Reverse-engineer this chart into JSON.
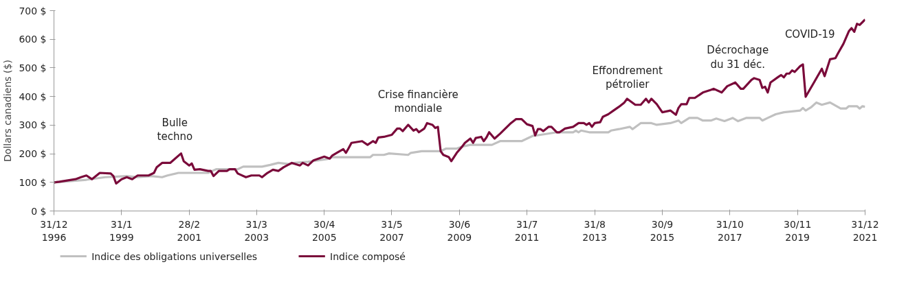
{
  "chart_data": {
    "type": "line",
    "ylabel": "Dollars canadiens ($)",
    "xlim": [
      "1996-12",
      "2021-12"
    ],
    "ylim": [
      0,
      700
    ],
    "xticks": [
      {
        "value": "1996-12",
        "label": "31/12\n1996"
      },
      {
        "value": "1999-01",
        "label": "31/1\n1999"
      },
      {
        "value": "2001-02",
        "label": "28/2\n2001"
      },
      {
        "value": "2003-03",
        "label": "31/3\n2003"
      },
      {
        "value": "2005-04",
        "label": "30/4\n2005"
      },
      {
        "value": "2007-05",
        "label": "31/5\n2007"
      },
      {
        "value": "2009-06",
        "label": "30/6\n2009"
      },
      {
        "value": "2011-07",
        "label": "31/7\n2011"
      },
      {
        "value": "2013-08",
        "label": "31/8\n2013"
      },
      {
        "value": "2015-09",
        "label": "30/9\n2015"
      },
      {
        "value": "2017-10",
        "label": "31/10\n2017"
      },
      {
        "value": "2019-11",
        "label": "30/11\n2019"
      },
      {
        "value": "2021-12",
        "label": "31/12\n2021"
      }
    ],
    "yticks": [
      {
        "value": 0,
        "label": "0 $"
      },
      {
        "value": 100,
        "label": "100 $"
      },
      {
        "value": 200,
        "label": "200 $"
      },
      {
        "value": 300,
        "label": "300 $"
      },
      {
        "value": 400,
        "label": "400 $"
      },
      {
        "value": 500,
        "label": "500 $"
      },
      {
        "value": 600,
        "label": "600 $"
      },
      {
        "value": 700,
        "label": "700 $"
      }
    ],
    "grid": false,
    "legend": "bottom",
    "line_style": "solid",
    "annotations": [
      "Bulle\ntechno",
      "Crise financière\nmondiale",
      "Effondrement\npétrolier",
      "Décrochage\ndu 31 déc.",
      "COVID-19"
    ],
    "series": [
      {
        "name": "Indice des obligations universelles",
        "color": "#c0c0c0",
        "x": [
          "1996-12",
          "1997-12",
          "1998-07",
          "1999-03",
          "1999-07",
          "1999-12",
          "2000-04",
          "2000-06",
          "2000-10",
          "2001-09",
          "2001-12",
          "2002-08",
          "2002-10",
          "2003-05",
          "2003-08",
          "2003-11",
          "2004-03",
          "2004-05",
          "2004-10",
          "2005-05",
          "2005-07",
          "2006-09",
          "2006-10",
          "2007-02",
          "2007-04",
          "2007-11",
          "2007-12",
          "2008-04",
          "2008-11",
          "2009-01",
          "2009-05",
          "2009-07",
          "2009-10",
          "2010-06",
          "2010-09",
          "2011-05",
          "2011-07",
          "2011-09",
          "2011-12",
          "2012-06",
          "2012-12",
          "2013-01",
          "2013-02",
          "2013-03",
          "2013-06",
          "2014-01",
          "2014-02",
          "2014-05",
          "2014-09",
          "2014-10",
          "2015-01",
          "2015-05",
          "2015-07",
          "2015-12",
          "2016-03",
          "2016-04",
          "2016-07",
          "2016-10",
          "2016-12",
          "2017-03",
          "2017-05",
          "2017-08",
          "2017-11",
          "2018-01",
          "2018-04",
          "2018-09",
          "2018-10",
          "2018-12",
          "2019-03",
          "2019-06",
          "2019-12",
          "2020-01",
          "2020-02",
          "2020-04",
          "2020-06",
          "2020-08",
          "2020-11",
          "2021-03",
          "2021-05",
          "2021-06",
          "2021-09",
          "2021-10",
          "2021-11",
          "2021-12"
        ],
        "values": [
          100,
          109,
          118,
          122,
          118,
          122,
          118,
          124,
          133,
          133,
          146,
          146,
          155,
          155,
          161,
          168,
          164,
          168,
          172,
          181,
          188,
          188,
          196,
          196,
          201,
          196,
          203,
          209,
          209,
          218,
          218,
          225,
          231,
          231,
          244,
          244,
          253,
          262,
          266,
          275,
          275,
          281,
          275,
          281,
          275,
          275,
          281,
          286,
          294,
          286,
          307,
          307,
          301,
          307,
          316,
          307,
          325,
          325,
          316,
          316,
          323,
          314,
          325,
          314,
          325,
          325,
          316,
          325,
          338,
          345,
          351,
          360,
          351,
          362,
          379,
          371,
          379,
          358,
          358,
          366,
          366,
          358,
          366,
          364
        ]
      },
      {
        "name": "Indice composé",
        "color": "#7a0a3a",
        "x": [
          "1996-12",
          "1997-02",
          "1997-08",
          "1997-10",
          "1997-12",
          "1998-02",
          "1998-05",
          "1998-09",
          "1998-10",
          "1998-11",
          "1999-01",
          "1999-03",
          "1999-05",
          "1999-07",
          "1999-11",
          "2000-01",
          "2000-02",
          "2000-04",
          "2000-07",
          "2000-11",
          "2000-12",
          "2001-02",
          "2001-03",
          "2001-04",
          "2001-06",
          "2001-09",
          "2001-10",
          "2001-11",
          "2002-01",
          "2002-04",
          "2002-05",
          "2002-07",
          "2002-08",
          "2002-11",
          "2003-01",
          "2003-04",
          "2003-05",
          "2003-07",
          "2003-09",
          "2003-11",
          "2004-01",
          "2004-04",
          "2004-07",
          "2004-08",
          "2004-10",
          "2004-12",
          "2005-04",
          "2005-06",
          "2005-07",
          "2005-09",
          "2005-11",
          "2005-12",
          "2006-01",
          "2006-02",
          "2006-06",
          "2006-08",
          "2006-10",
          "2006-11",
          "2006-12",
          "2007-02",
          "2007-05",
          "2007-07",
          "2007-08",
          "2007-09",
          "2007-11",
          "2008-01",
          "2008-02",
          "2008-03",
          "2008-05",
          "2008-06",
          "2008-08",
          "2008-09",
          "2008-10",
          "2008-11",
          "2008-12",
          "2009-02",
          "2009-03",
          "2009-05",
          "2009-07",
          "2009-08",
          "2009-10",
          "2009-11",
          "2009-12",
          "2010-02",
          "2010-03",
          "2010-04",
          "2010-05",
          "2010-07",
          "2010-09",
          "2011-01",
          "2011-03",
          "2011-05",
          "2011-07",
          "2011-09",
          "2011-10",
          "2011-11",
          "2011-12",
          "2012-01",
          "2012-03",
          "2012-04",
          "2012-06",
          "2012-07",
          "2012-09",
          "2012-12",
          "2013-02",
          "2013-04",
          "2013-05",
          "2013-06",
          "2013-07",
          "2013-08",
          "2013-10",
          "2013-11",
          "2014-01",
          "2014-03",
          "2014-05",
          "2014-07",
          "2014-08",
          "2014-11",
          "2015-01",
          "2015-03",
          "2015-04",
          "2015-05",
          "2015-07",
          "2015-09",
          "2015-12",
          "2016-02",
          "2016-03",
          "2016-04",
          "2016-06",
          "2016-07",
          "2016-09",
          "2016-12",
          "2017-03",
          "2017-04",
          "2017-07",
          "2017-09",
          "2017-12",
          "2018-02",
          "2018-03",
          "2018-06",
          "2018-07",
          "2018-09",
          "2018-10",
          "2018-11",
          "2018-12",
          "2019-01",
          "2019-04",
          "2019-05",
          "2019-06",
          "2019-07",
          "2019-08",
          "2019-09",
          "2019-10",
          "2019-12",
          "2020-01",
          "2020-02",
          "2020-05",
          "2020-06",
          "2020-08",
          "2020-09",
          "2020-11",
          "2021-01",
          "2021-02",
          "2021-04",
          "2021-06",
          "2021-07",
          "2021-08",
          "2021-09",
          "2021-10",
          "2021-12"
        ],
        "values": [
          100,
          102,
          111,
          118,
          124,
          111,
          133,
          131,
          122,
          96,
          111,
          118,
          111,
          124,
          124,
          133,
          153,
          168,
          168,
          201,
          174,
          159,
          166,
          144,
          146,
          140,
          140,
          122,
          140,
          140,
          146,
          146,
          131,
          118,
          124,
          124,
          118,
          133,
          144,
          140,
          153,
          168,
          159,
          168,
          159,
          177,
          190,
          183,
          194,
          205,
          216,
          203,
          220,
          238,
          244,
          231,
          244,
          238,
          257,
          259,
          266,
          288,
          288,
          279,
          301,
          281,
          286,
          275,
          288,
          307,
          301,
          290,
          294,
          209,
          196,
          188,
          174,
          203,
          225,
          238,
          253,
          238,
          255,
          259,
          244,
          257,
          275,
          253,
          270,
          307,
          321,
          321,
          303,
          297,
          264,
          286,
          286,
          279,
          294,
          294,
          275,
          275,
          288,
          294,
          307,
          307,
          301,
          307,
          294,
          307,
          310,
          329,
          338,
          351,
          364,
          379,
          392,
          371,
          371,
          392,
          379,
          392,
          373,
          345,
          351,
          336,
          360,
          373,
          373,
          395,
          395,
          414,
          423,
          427,
          414,
          436,
          449,
          427,
          427,
          458,
          464,
          458,
          430,
          434,
          414,
          449,
          469,
          475,
          467,
          480,
          480,
          491,
          486,
          506,
          512,
          399,
          447,
          464,
          497,
          471,
          530,
          534,
          552,
          584,
          628,
          639,
          626,
          654,
          650,
          669
        ]
      }
    ]
  }
}
